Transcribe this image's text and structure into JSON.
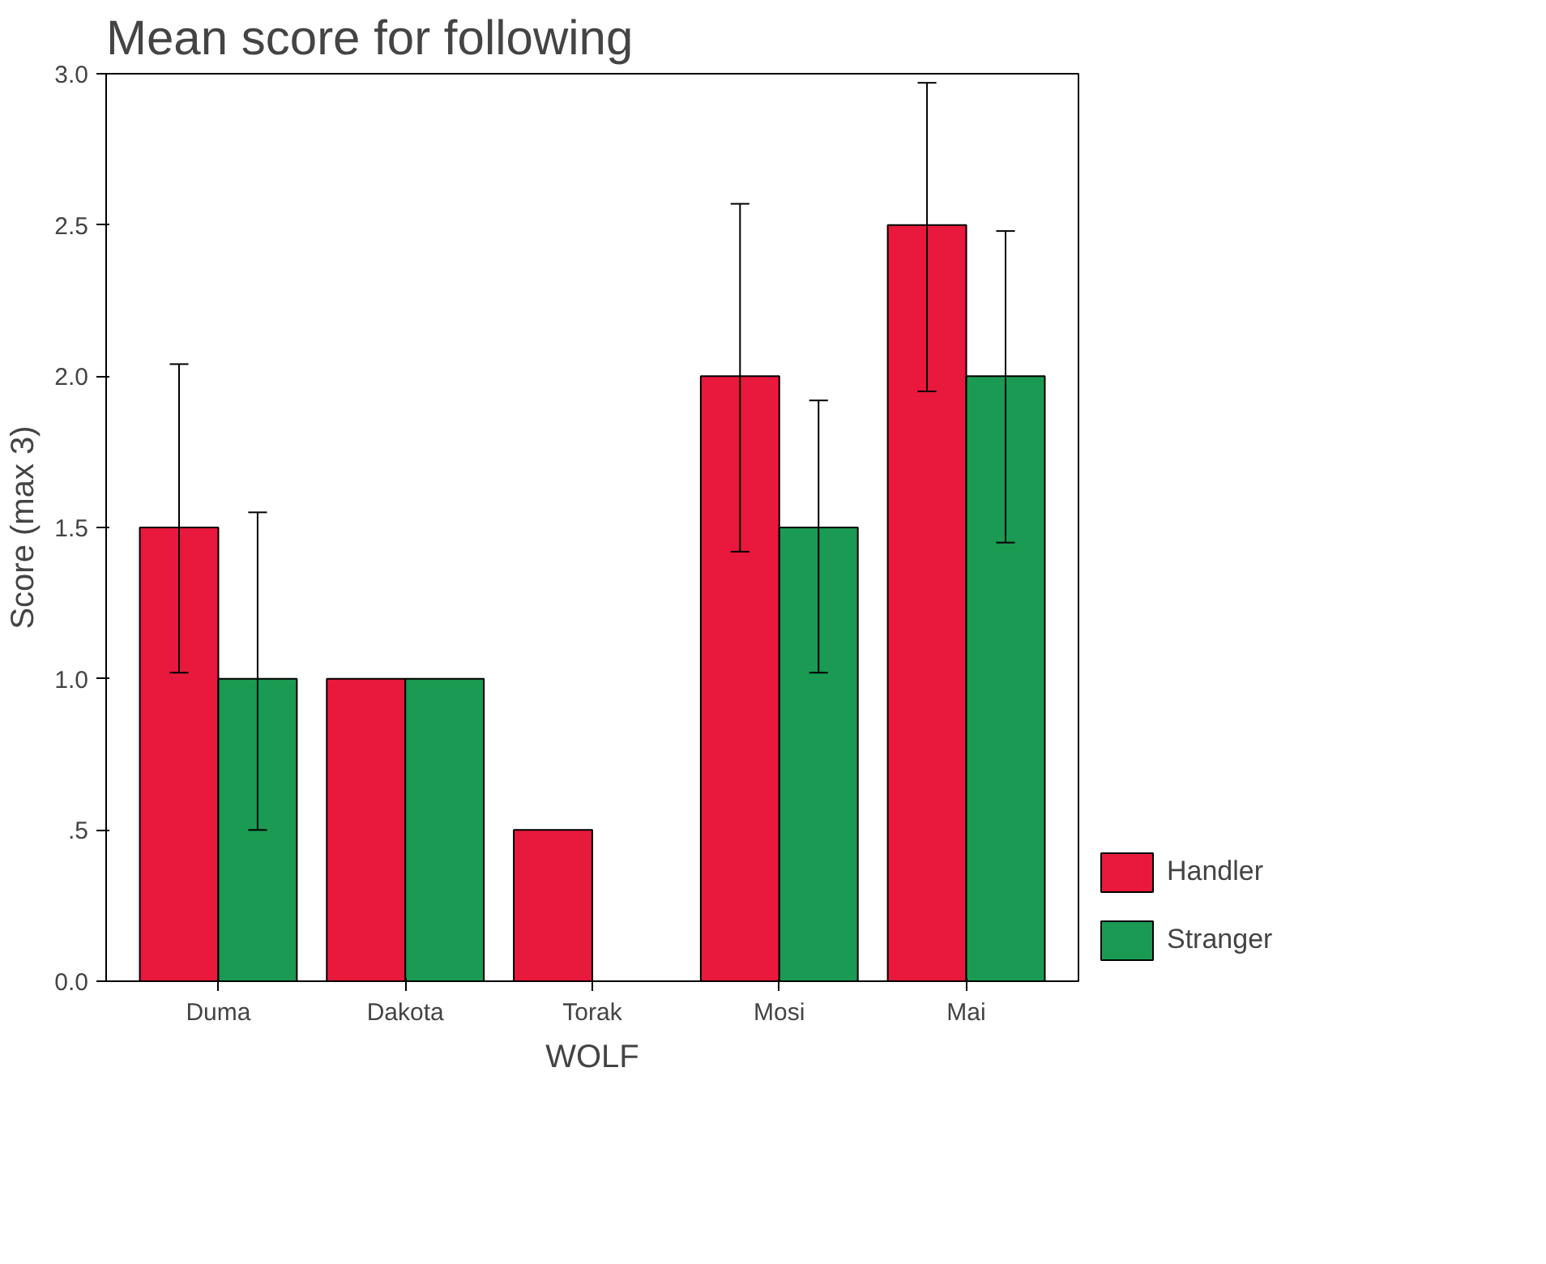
{
  "chart_data": {
    "type": "bar",
    "title": "Mean score for following",
    "xlabel": "WOLF",
    "ylabel": "Score (max 3)",
    "categories": [
      "Duma",
      "Dakota",
      "Torak",
      "Mosi",
      "Mai"
    ],
    "series": [
      {
        "name": "Handler",
        "color": "#e8193c",
        "values": [
          1.5,
          1.0,
          0.5,
          2.0,
          2.5
        ],
        "errors": [
          [
            1.02,
            2.04
          ],
          null,
          null,
          [
            1.42,
            2.57
          ],
          [
            1.95,
            2.97
          ]
        ]
      },
      {
        "name": "Stranger",
        "color": "#1a9a52",
        "values": [
          1.0,
          1.0,
          null,
          1.5,
          2.0
        ],
        "errors": [
          [
            0.5,
            1.55
          ],
          null,
          null,
          [
            1.02,
            1.92
          ],
          [
            1.45,
            2.48
          ]
        ]
      }
    ],
    "ylim": [
      0,
      3
    ],
    "yticks": [
      {
        "value": 0,
        "label": "0.0"
      },
      {
        "value": 0.5,
        "label": ".5"
      },
      {
        "value": 1,
        "label": "1.0"
      },
      {
        "value": 1.5,
        "label": "1.5"
      },
      {
        "value": 2,
        "label": "2.0"
      },
      {
        "value": 2.5,
        "label": "2.5"
      },
      {
        "value": 3,
        "label": "3.0"
      }
    ],
    "grid": false,
    "legend": "bottom right"
  }
}
